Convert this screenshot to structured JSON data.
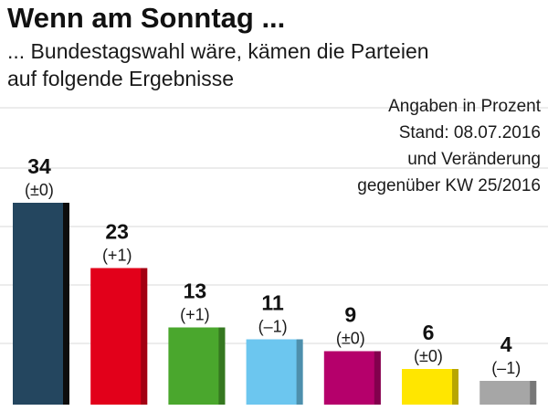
{
  "title": "Wenn am Sonntag ...",
  "subtitle_lines": [
    "... Bundestagswahl wäre, kämen die Parteien",
    "auf folgende Ergebnisse"
  ],
  "note_lines": [
    "Angaben in Prozent",
    "Stand: 08.07.2016",
    "und Veränderung",
    "gegenüber KW 25/2016"
  ],
  "chart_data": {
    "type": "bar",
    "values": [
      34,
      23,
      13,
      11,
      9,
      6,
      4
    ],
    "changes": [
      "(±0)",
      "(+1)",
      "(+1)",
      "(–1)",
      "(±0)",
      "(±0)",
      "(–1)"
    ],
    "colors": [
      "#24465f",
      "#e2001a",
      "#4aa72d",
      "#6cc6ef",
      "#b5006b",
      "#ffe600",
      "#a6a6a6"
    ],
    "ylim": [
      0,
      34
    ],
    "grid": true
  }
}
